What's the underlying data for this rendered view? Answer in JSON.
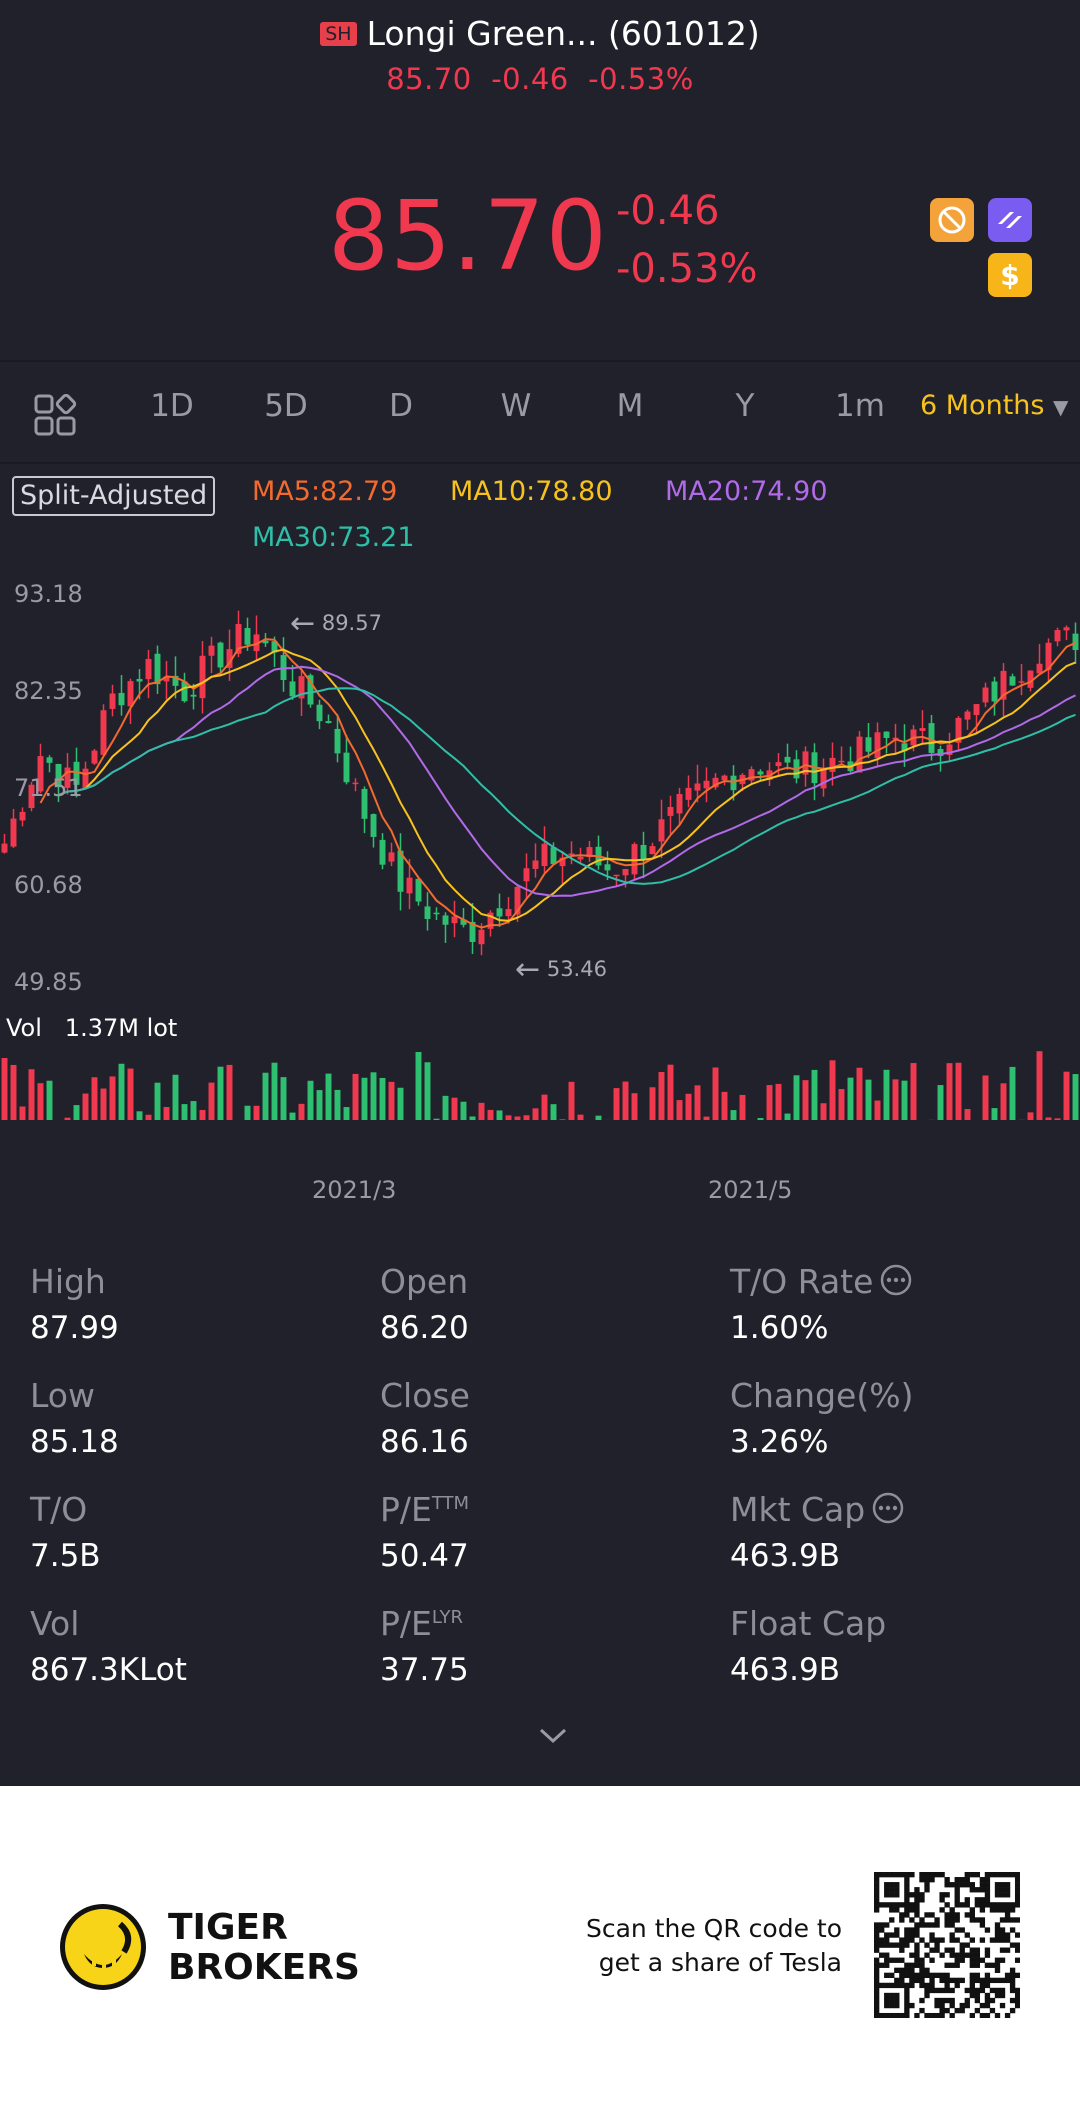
{
  "header": {
    "exchange_badge": "SH",
    "title": "Longi Green... (601012)",
    "subline_price": "85.70",
    "subline_change": "-0.46",
    "subline_pct": "-0.53%",
    "price": "85.70",
    "change": "-0.46",
    "change_pct": "-0.53%"
  },
  "tabs": [
    "1D",
    "5D",
    "D",
    "W",
    "M",
    "Y",
    "1m"
  ],
  "selected_range": "6 Months",
  "indicators": {
    "mode": "Split-Adjusted",
    "ma5": "MA5:82.79",
    "ma10": "MA10:78.80",
    "ma20": "MA20:74.90",
    "ma30": "MA30:73.21"
  },
  "price_axis": [
    "93.18",
    "82.35",
    "71.51",
    "60.68",
    "49.85"
  ],
  "annotations": {
    "high": "89.57",
    "low": "53.46"
  },
  "volume": {
    "label": "Vol",
    "value": "1.37M lot"
  },
  "dates": [
    "2021/3",
    "2021/5"
  ],
  "stats": [
    {
      "label": "High",
      "value": "87.99"
    },
    {
      "label": "Open",
      "value": "86.20"
    },
    {
      "label": "T/O Rate",
      "value": "1.60%"
    },
    {
      "label": "Low",
      "value": "85.18"
    },
    {
      "label": "Close",
      "value": "86.16"
    },
    {
      "label": "Change(%)",
      "value": "3.26%"
    },
    {
      "label": "T/O",
      "value": "7.5B"
    },
    {
      "label": "P/E",
      "sup": "TTM",
      "value": "50.47"
    },
    {
      "label": "Mkt Cap",
      "value": "463.9B"
    },
    {
      "label": "Vol",
      "value": "867.3KLot"
    },
    {
      "label": "P/E",
      "sup": "LYR",
      "value": "37.75"
    },
    {
      "label": "Float Cap",
      "value": "463.9B"
    }
  ],
  "footer": {
    "brand_line1": "TIGER",
    "brand_line2": "BROKERS",
    "scan_line1": "Scan the QR code to",
    "scan_line2": "get a share of Tesla"
  },
  "colors": {
    "up": "#f0394f",
    "down": "#2fbf71",
    "ma5": "#f26a2e",
    "ma10": "#f7c21e",
    "ma20": "#b16ae8",
    "ma30": "#2fbfa8",
    "background": "#21212b"
  },
  "chart_data": {
    "type": "candlestick",
    "ylim": [
      49.85,
      93.18
    ],
    "x": [
      "2021/3",
      "2021/5"
    ],
    "close_keypoints": [
      64,
      74,
      70,
      80,
      84,
      81,
      85,
      88,
      82,
      78,
      68,
      60,
      56,
      54,
      58,
      62,
      63,
      61,
      64,
      68,
      71,
      73,
      72,
      73,
      74,
      76,
      75,
      78,
      82,
      86,
      87
    ]
  }
}
